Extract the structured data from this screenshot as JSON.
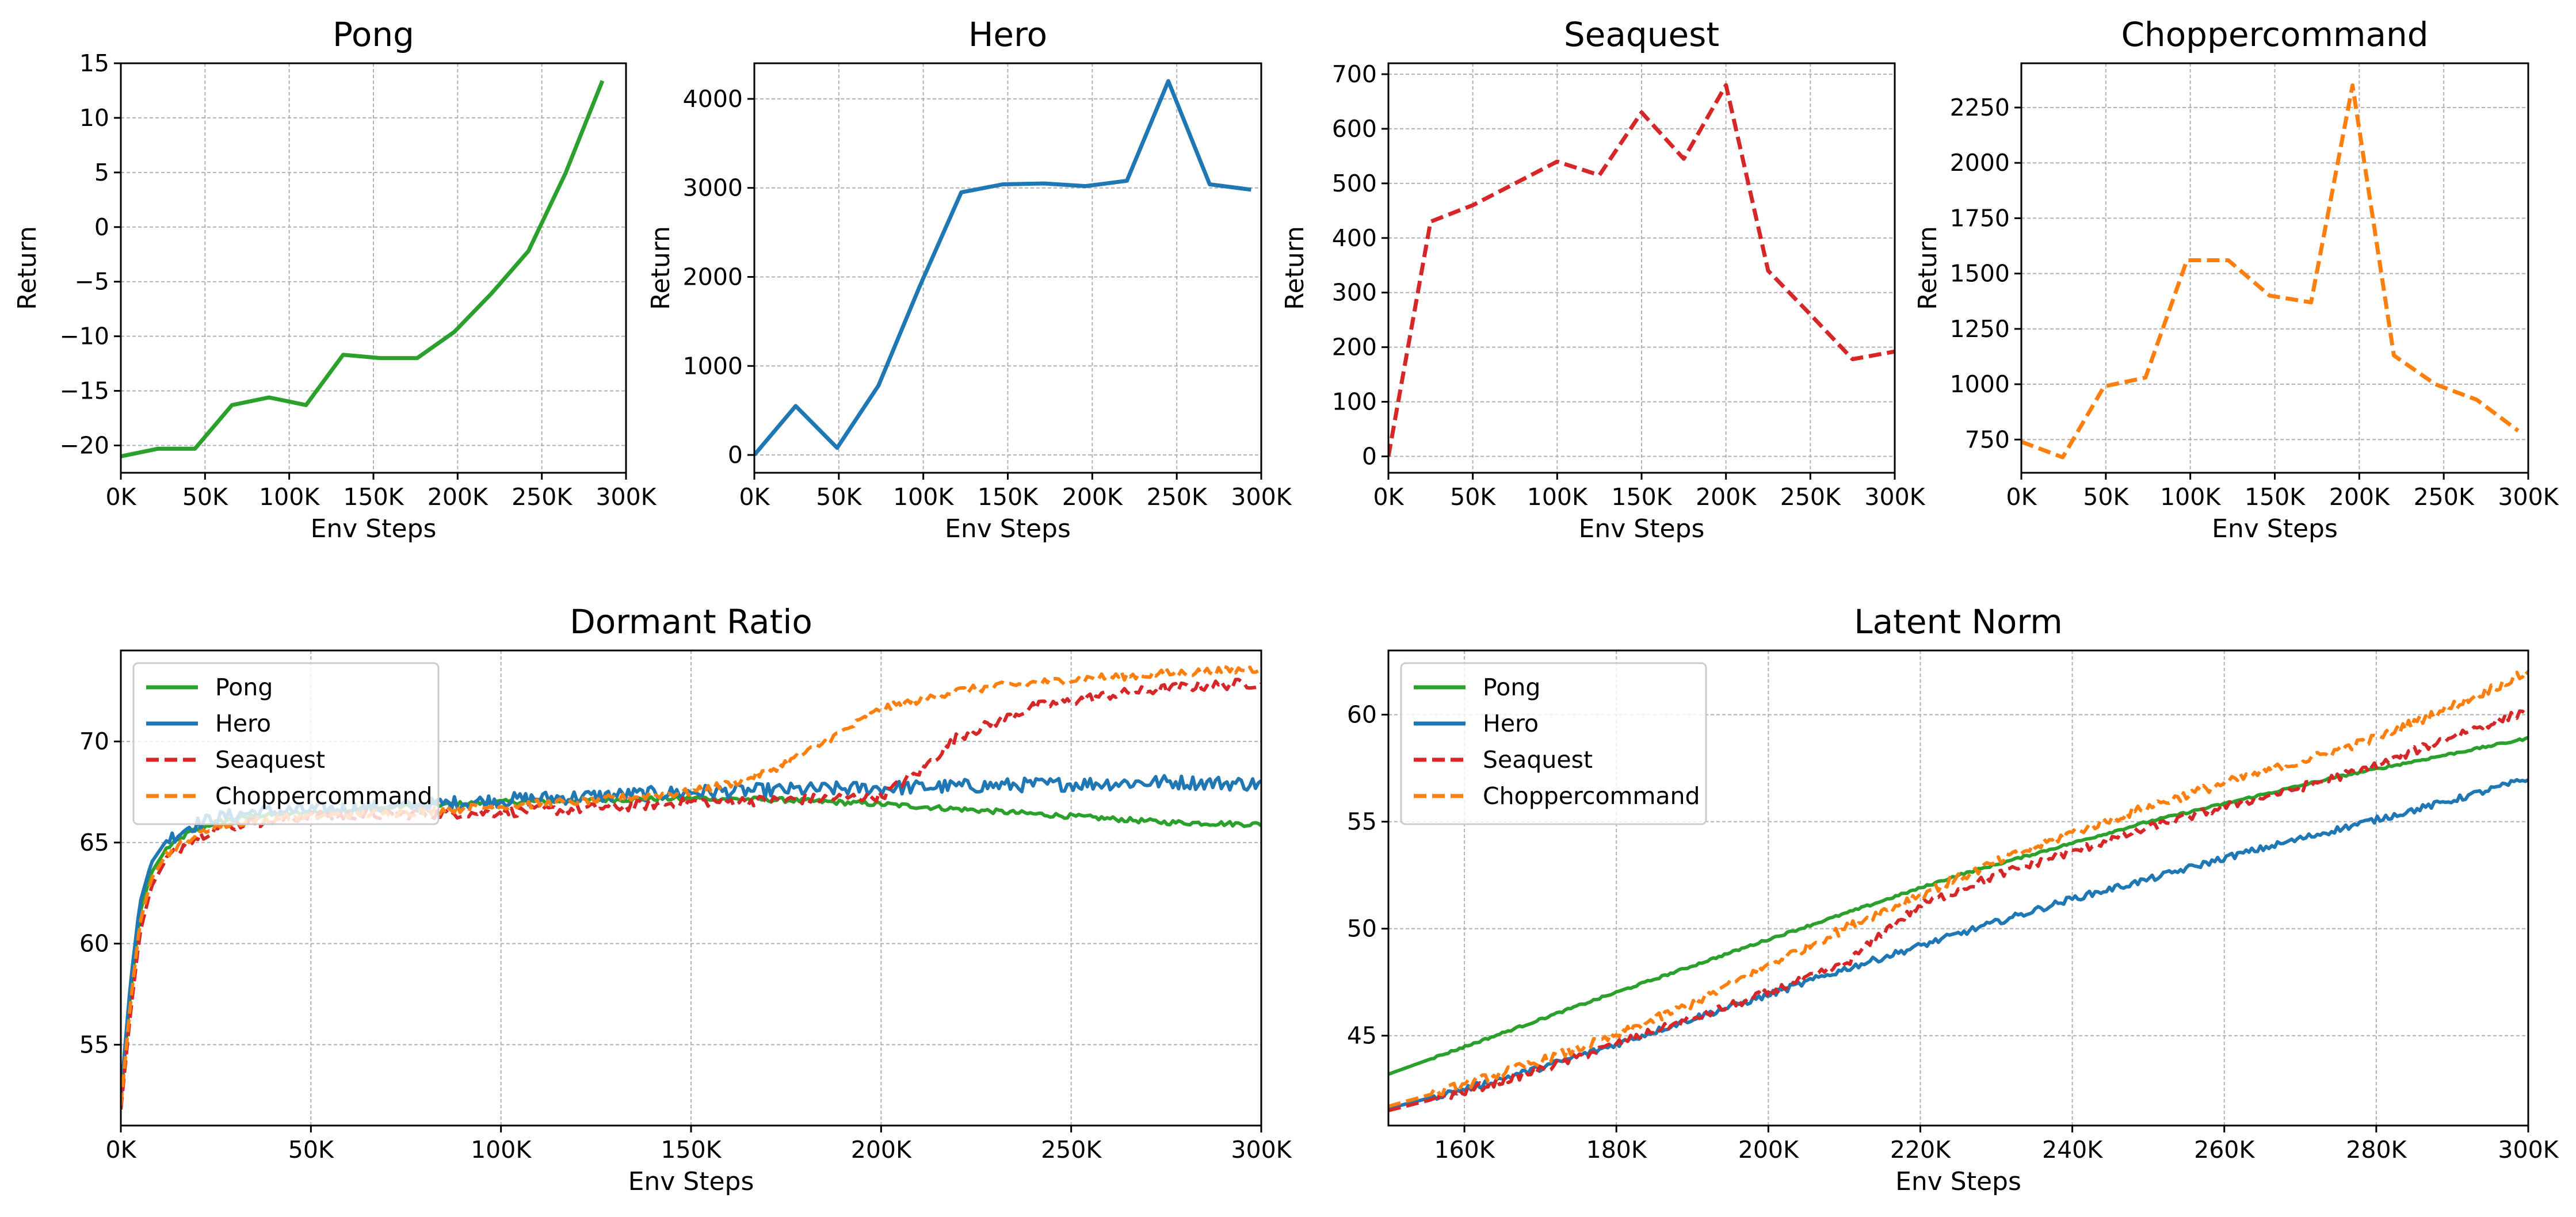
{
  "figure": {
    "background": "#ffffff"
  },
  "colors": {
    "Pong": "#2ca02c",
    "Hero": "#1f77b4",
    "Seaquest": "#d62728",
    "Choppercommand": "#ff7f0e"
  },
  "chart_data": [
    {
      "id": "pong",
      "type": "line",
      "title": "Pong",
      "xlabel": "Env Steps",
      "ylabel": "Return",
      "xlim": [
        0,
        300000
      ],
      "ylim": [
        -22.5,
        15
      ],
      "xticks": [
        0,
        50000,
        100000,
        150000,
        200000,
        250000,
        300000
      ],
      "xtick_labels": [
        "0K",
        "50K",
        "100K",
        "150K",
        "200K",
        "250K",
        "300K"
      ],
      "yticks": [
        -20,
        -15,
        -10,
        -5,
        0,
        5,
        10,
        15
      ],
      "ytick_labels": [
        "−20",
        "−15",
        "−10",
        "−5",
        "0",
        "5",
        "10",
        "15"
      ],
      "series": [
        {
          "name": "Pong",
          "color": "#2ca02c",
          "dash": "solid",
          "x": [
            0,
            22000,
            44000,
            66000,
            88000,
            110000,
            132000,
            154000,
            176000,
            198000,
            220000,
            242000,
            264000,
            286000
          ],
          "y": [
            -21,
            -20.3,
            -20.3,
            -16.3,
            -15.6,
            -16.3,
            -11.7,
            -12,
            -12,
            -9.6,
            -6.1,
            -2.2,
            4.9,
            13.4
          ]
        }
      ]
    },
    {
      "id": "hero",
      "type": "line",
      "title": "Hero",
      "xlabel": "Env Steps",
      "ylabel": "Return",
      "xlim": [
        0,
        300000
      ],
      "ylim": [
        -200,
        4400
      ],
      "xticks": [
        0,
        50000,
        100000,
        150000,
        200000,
        250000,
        300000
      ],
      "xtick_labels": [
        "0K",
        "50K",
        "100K",
        "150K",
        "200K",
        "250K",
        "300K"
      ],
      "yticks": [
        0,
        1000,
        2000,
        3000,
        4000
      ],
      "ytick_labels": [
        "0",
        "1000",
        "2000",
        "3000",
        "4000"
      ],
      "series": [
        {
          "name": "Hero",
          "color": "#1f77b4",
          "dash": "solid",
          "x": [
            0,
            24500,
            49000,
            73500,
            98000,
            122500,
            147000,
            171500,
            196000,
            220500,
            245000,
            269500,
            294000
          ],
          "y": [
            0,
            550,
            80,
            780,
            1900,
            2950,
            3040,
            3050,
            3020,
            3080,
            4200,
            3040,
            2980
          ]
        }
      ]
    },
    {
      "id": "seaquest",
      "type": "line",
      "title": "Seaquest",
      "xlabel": "Env Steps",
      "ylabel": "Return",
      "xlim": [
        0,
        300000
      ],
      "ylim": [
        -30,
        720
      ],
      "xticks": [
        0,
        50000,
        100000,
        150000,
        200000,
        250000,
        300000
      ],
      "xtick_labels": [
        "0K",
        "50K",
        "100K",
        "150K",
        "200K",
        "250K",
        "300K"
      ],
      "yticks": [
        0,
        100,
        200,
        300,
        400,
        500,
        600,
        700
      ],
      "ytick_labels": [
        "0",
        "100",
        "200",
        "300",
        "400",
        "500",
        "600",
        "700"
      ],
      "series": [
        {
          "name": "Seaquest",
          "color": "#d62728",
          "dash": "dashed",
          "x": [
            0,
            25000,
            50000,
            75000,
            100000,
            125000,
            150000,
            175000,
            200000,
            225000,
            250000,
            275000,
            300000
          ],
          "y": [
            0,
            430,
            460,
            500,
            540,
            515,
            630,
            545,
            680,
            340,
            260,
            178,
            192
          ]
        }
      ]
    },
    {
      "id": "choppercommand",
      "type": "line",
      "title": "Choppercommand",
      "xlabel": "Env Steps",
      "ylabel": "Return",
      "xlim": [
        0,
        300000
      ],
      "ylim": [
        600,
        2450
      ],
      "xticks": [
        0,
        50000,
        100000,
        150000,
        200000,
        250000,
        300000
      ],
      "xtick_labels": [
        "0K",
        "50K",
        "100K",
        "150K",
        "200K",
        "250K",
        "300K"
      ],
      "yticks": [
        750,
        1000,
        1250,
        1500,
        1750,
        2000,
        2250
      ],
      "ytick_labels": [
        "750",
        "1000",
        "1250",
        "1500",
        "1750",
        "2000",
        "2250"
      ],
      "series": [
        {
          "name": "Choppercommand",
          "color": "#ff7f0e",
          "dash": "dashed",
          "x": [
            0,
            24500,
            49000,
            73500,
            98000,
            122500,
            147000,
            171500,
            196000,
            220500,
            245000,
            269500,
            294000
          ],
          "y": [
            740,
            670,
            990,
            1030,
            1560,
            1560,
            1400,
            1370,
            2350,
            1130,
            1000,
            930,
            790
          ]
        }
      ]
    },
    {
      "id": "dormant",
      "type": "line",
      "title": "Dormant Ratio",
      "xlabel": "Env Steps",
      "ylabel": "",
      "xlim": [
        0,
        300000
      ],
      "ylim": [
        51,
        74.5
      ],
      "xticks": [
        0,
        50000,
        100000,
        150000,
        200000,
        250000,
        300000
      ],
      "xtick_labels": [
        "0K",
        "50K",
        "100K",
        "150K",
        "200K",
        "250K",
        "300K"
      ],
      "yticks": [
        55,
        60,
        65,
        70
      ],
      "ytick_labels": [
        "55",
        "60",
        "65",
        "70"
      ],
      "legend": {
        "position": "upper-left",
        "entries": [
          "Pong",
          "Hero",
          "Seaquest",
          "Choppercommand"
        ]
      },
      "series": [
        {
          "name": "Pong",
          "color": "#2ca02c",
          "dash": "solid",
          "x": [
            0,
            2500,
            5000,
            8000,
            12000,
            18000,
            25000,
            35000,
            50000,
            75000,
            100000,
            125000,
            150000,
            175000,
            200000,
            225000,
            250000,
            275000,
            300000
          ],
          "y": [
            52.3,
            57.5,
            61.5,
            63.5,
            64.7,
            65.5,
            66,
            66.3,
            66.5,
            66.8,
            67,
            67.1,
            67.2,
            67.1,
            66.9,
            66.6,
            66.3,
            66,
            65.9
          ],
          "noise": 0.12
        },
        {
          "name": "Hero",
          "color": "#1f77b4",
          "dash": "solid",
          "x": [
            0,
            2500,
            5000,
            8000,
            12000,
            18000,
            25000,
            35000,
            50000,
            75000,
            100000,
            125000,
            150000,
            175000,
            200000,
            225000,
            250000,
            275000,
            300000
          ],
          "y": [
            52.5,
            58,
            62,
            64,
            65.1,
            65.8,
            66.2,
            66.5,
            66.6,
            66.8,
            67.1,
            67.3,
            67.5,
            67.6,
            67.7,
            67.8,
            67.9,
            68,
            67.9
          ],
          "noise": 0.35
        },
        {
          "name": "Seaquest",
          "color": "#d62728",
          "dash": "dashed",
          "x": [
            0,
            2500,
            5000,
            8000,
            12000,
            18000,
            25000,
            35000,
            50000,
            75000,
            100000,
            125000,
            150000,
            175000,
            200000,
            210000,
            220000,
            240000,
            260000,
            280000,
            300000
          ],
          "y": [
            51.8,
            56.5,
            60.5,
            62.8,
            64.2,
            65.1,
            65.7,
            66,
            66.3,
            66.4,
            66.5,
            66.7,
            67,
            67.1,
            67.3,
            68.5,
            70.2,
            71.7,
            72.3,
            72.7,
            72.9
          ],
          "noise": 0.25
        },
        {
          "name": "Choppercommand",
          "color": "#ff7f0e",
          "dash": "dashed",
          "x": [
            0,
            2500,
            5000,
            8000,
            12000,
            18000,
            25000,
            35000,
            50000,
            75000,
            100000,
            125000,
            150000,
            160000,
            170000,
            180000,
            190000,
            200000,
            220000,
            240000,
            260000,
            280000,
            300000
          ],
          "y": [
            52,
            57,
            61,
            63.2,
            64.4,
            65.2,
            65.8,
            66.1,
            66.3,
            66.5,
            66.8,
            67.1,
            67.5,
            67.9,
            68.5,
            69.4,
            70.5,
            71.6,
            72.5,
            72.9,
            73.2,
            73.4,
            73.6
          ],
          "noise": 0.2
        }
      ]
    },
    {
      "id": "latent",
      "type": "line",
      "title": "Latent Norm",
      "xlabel": "Env Steps",
      "ylabel": "",
      "xlim": [
        150000,
        300000
      ],
      "ylim": [
        40.8,
        63
      ],
      "xticks": [
        160000,
        180000,
        200000,
        220000,
        240000,
        260000,
        280000,
        300000
      ],
      "xtick_labels": [
        "160K",
        "180K",
        "200K",
        "220K",
        "240K",
        "260K",
        "280K",
        "300K"
      ],
      "yticks": [
        45,
        50,
        55,
        60
      ],
      "ytick_labels": [
        "45",
        "50",
        "55",
        "60"
      ],
      "legend": {
        "position": "upper-left",
        "entries": [
          "Pong",
          "Hero",
          "Seaquest",
          "Choppercommand"
        ]
      },
      "series": [
        {
          "name": "Pong",
          "color": "#2ca02c",
          "dash": "solid",
          "x": [
            150000,
            175000,
            200000,
            225000,
            250000,
            275000,
            300000
          ],
          "y": [
            43.2,
            46.4,
            49.5,
            52.5,
            55,
            57.1,
            58.9
          ],
          "noise": 0.05
        },
        {
          "name": "Hero",
          "color": "#1f77b4",
          "dash": "solid",
          "x": [
            150000,
            160000,
            170000,
            180000,
            190000,
            200000,
            210000,
            220000,
            230000,
            240000,
            250000,
            260000,
            270000,
            280000,
            290000,
            300000
          ],
          "y": [
            41.6,
            42.5,
            43.5,
            44.6,
            45.8,
            46.9,
            48.1,
            49.2,
            50.3,
            51.4,
            52.3,
            53.3,
            54.2,
            55.1,
            56,
            57
          ],
          "noise": 0.15
        },
        {
          "name": "Seaquest",
          "color": "#d62728",
          "dash": "dashed",
          "x": [
            150000,
            160000,
            170000,
            180000,
            190000,
            200000,
            210000,
            215000,
            220000,
            230000,
            240000,
            250000,
            260000,
            270000,
            280000,
            290000,
            300000
          ],
          "y": [
            41.5,
            42.4,
            43.4,
            44.6,
            45.8,
            47,
            48.3,
            49.8,
            51.1,
            52.5,
            53.6,
            54.7,
            55.7,
            56.6,
            57.6,
            59,
            60.2
          ],
          "noise": 0.2
        },
        {
          "name": "Choppercommand",
          "color": "#ff7f0e",
          "dash": "dashed",
          "x": [
            150000,
            160000,
            170000,
            180000,
            190000,
            200000,
            210000,
            220000,
            230000,
            240000,
            250000,
            260000,
            270000,
            280000,
            290000,
            300000
          ],
          "y": [
            41.7,
            42.7,
            43.8,
            45,
            46.5,
            48.3,
            50,
            51.6,
            53.1,
            54.5,
            55.7,
            56.8,
            57.8,
            58.9,
            60.4,
            62
          ],
          "noise": 0.22
        }
      ]
    }
  ]
}
